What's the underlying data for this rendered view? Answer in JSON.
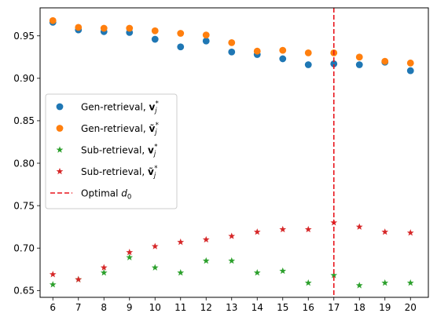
{
  "chart_data": {
    "type": "scatter",
    "title": "",
    "xlabel": "",
    "ylabel": "",
    "x": [
      6,
      7,
      8,
      9,
      10,
      11,
      12,
      13,
      14,
      15,
      16,
      17,
      18,
      19,
      20
    ],
    "xlim": [
      5.5,
      20.7
    ],
    "ylim": [
      0.642,
      0.983
    ],
    "xticks": [
      "6",
      "7",
      "8",
      "9",
      "10",
      "11",
      "12",
      "13",
      "14",
      "15",
      "16",
      "17",
      "18",
      "19",
      "20"
    ],
    "yticks": [
      "0.65",
      "0.70",
      "0.75",
      "0.80",
      "0.85",
      "0.90",
      "0.95"
    ],
    "yticks_values": [
      0.65,
      0.7,
      0.75,
      0.8,
      0.85,
      0.9,
      0.95
    ],
    "grid": false,
    "legend_position": "center-left",
    "series": [
      {
        "name_prefix": "Gen-retrieval,",
        "name_symbol": "v",
        "name_hat": false,
        "marker": "circle",
        "color": "#1f77b4",
        "values": [
          0.966,
          0.957,
          0.955,
          0.954,
          0.946,
          0.937,
          0.944,
          0.931,
          0.928,
          0.923,
          0.916,
          0.917,
          0.916,
          0.919,
          0.909
        ]
      },
      {
        "name_prefix": "Gen-retrieval,",
        "name_symbol": "ṽ",
        "name_hat": true,
        "marker": "circle",
        "color": "#ff7f0e",
        "values": [
          0.968,
          0.96,
          0.959,
          0.959,
          0.956,
          0.953,
          0.951,
          0.942,
          0.932,
          0.933,
          0.93,
          0.93,
          0.925,
          0.92,
          0.918
        ]
      },
      {
        "name_prefix": "Sub-retrieval,",
        "name_symbol": "v",
        "name_hat": false,
        "marker": "star",
        "color": "#2ca02c",
        "values": [
          0.657,
          0.663,
          0.671,
          0.689,
          0.677,
          0.671,
          0.685,
          0.685,
          0.671,
          0.673,
          0.659,
          0.668,
          0.656,
          0.659,
          0.659
        ]
      },
      {
        "name_prefix": "Sub-retrieval,",
        "name_symbol": "ṽ",
        "name_hat": true,
        "marker": "star",
        "color": "#d62728",
        "values": [
          0.669,
          0.663,
          0.677,
          0.695,
          0.702,
          0.707,
          0.71,
          0.714,
          0.719,
          0.722,
          0.722,
          0.73,
          0.725,
          0.719,
          0.718
        ]
      }
    ],
    "vline": {
      "name_prefix": "Optimal",
      "name_symbol": "d",
      "name_subscript": "0",
      "x": 17,
      "color": "#e8141c",
      "style": "dashed"
    }
  }
}
